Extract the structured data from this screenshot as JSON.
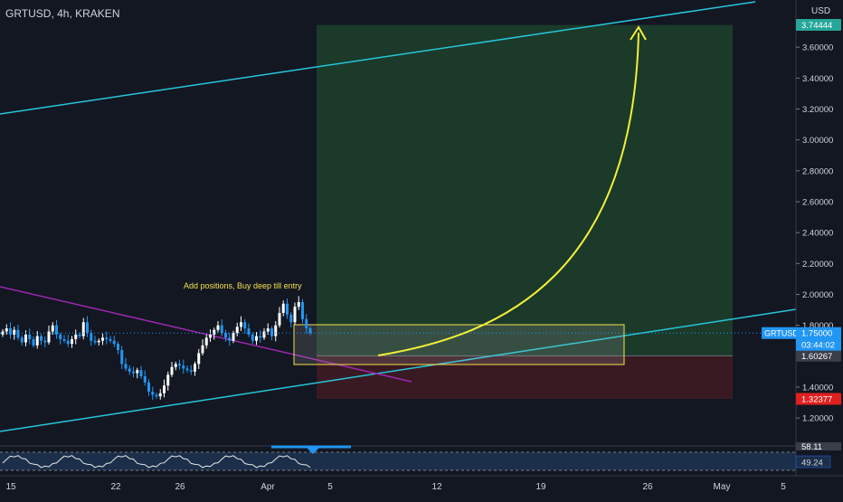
{
  "header": {
    "symbol_line": "GRTUSD, 4h, KRAKEN",
    "currency": "USD"
  },
  "colors": {
    "background": "#131722",
    "up": "#ffffff",
    "down": "#2196f3",
    "channel": "#26c6da",
    "trendline": "#9c27b0",
    "profit_zone": "#1b3a2a",
    "loss_zone": "#3a1a22",
    "entry_box": "#f5e04a",
    "arrow": "#f5ee3a",
    "price_line": "#2196f3",
    "target_badge": "#26a69a",
    "stop_badge": "#e02020",
    "entry_badge": "#3a3e4a",
    "current_badge": "#2196f3"
  },
  "annotations": {
    "note": "Add positions, Buy deep till entry"
  },
  "price_scale": {
    "ticks": [
      "3.60000",
      "3.40000",
      "3.20000",
      "3.00000",
      "2.80000",
      "2.60000",
      "2.40000",
      "2.20000",
      "2.00000",
      "1.80000",
      "1.40000",
      "1.20000"
    ],
    "target_label": "3.74444",
    "current_symbol": "GRTUSD",
    "current_price": "1.75000",
    "countdown": "03:44:02",
    "entry_label": "1.60267",
    "stop_label": "1.32377"
  },
  "oscillator": {
    "value_top": "58.11",
    "value": "49.24"
  },
  "time_axis": {
    "labels": [
      "15",
      "22",
      "26",
      "Apr",
      "5",
      "12",
      "19",
      "26",
      "May",
      "5"
    ]
  },
  "chart_data": {
    "type": "candlestick",
    "symbol": "GRTUSD",
    "interval": "4h",
    "exchange": "KRAKEN",
    "price_range": [
      1.1,
      3.8
    ],
    "close_series": [
      1.76,
      1.78,
      1.74,
      1.77,
      1.72,
      1.69,
      1.74,
      1.71,
      1.67,
      1.73,
      1.7,
      1.69,
      1.76,
      1.8,
      1.74,
      1.71,
      1.7,
      1.68,
      1.71,
      1.74,
      1.73,
      1.82,
      1.75,
      1.7,
      1.69,
      1.7,
      1.72,
      1.71,
      1.7,
      1.68,
      1.64,
      1.55,
      1.52,
      1.5,
      1.49,
      1.51,
      1.47,
      1.43,
      1.37,
      1.35,
      1.34,
      1.36,
      1.41,
      1.48,
      1.53,
      1.55,
      1.54,
      1.52,
      1.51,
      1.5,
      1.55,
      1.62,
      1.67,
      1.72,
      1.74,
      1.77,
      1.8,
      1.75,
      1.72,
      1.7,
      1.75,
      1.79,
      1.82,
      1.78,
      1.74,
      1.7,
      1.73,
      1.72,
      1.76,
      1.78,
      1.73,
      1.8,
      1.88,
      1.94,
      1.87,
      1.82,
      1.92,
      1.95,
      1.84,
      1.78,
      1.75
    ],
    "long_position": {
      "entry": 1.60267,
      "target": 3.74444,
      "stop": 1.32377
    },
    "current_price": 1.75,
    "oscillator_last": 49.24
  }
}
